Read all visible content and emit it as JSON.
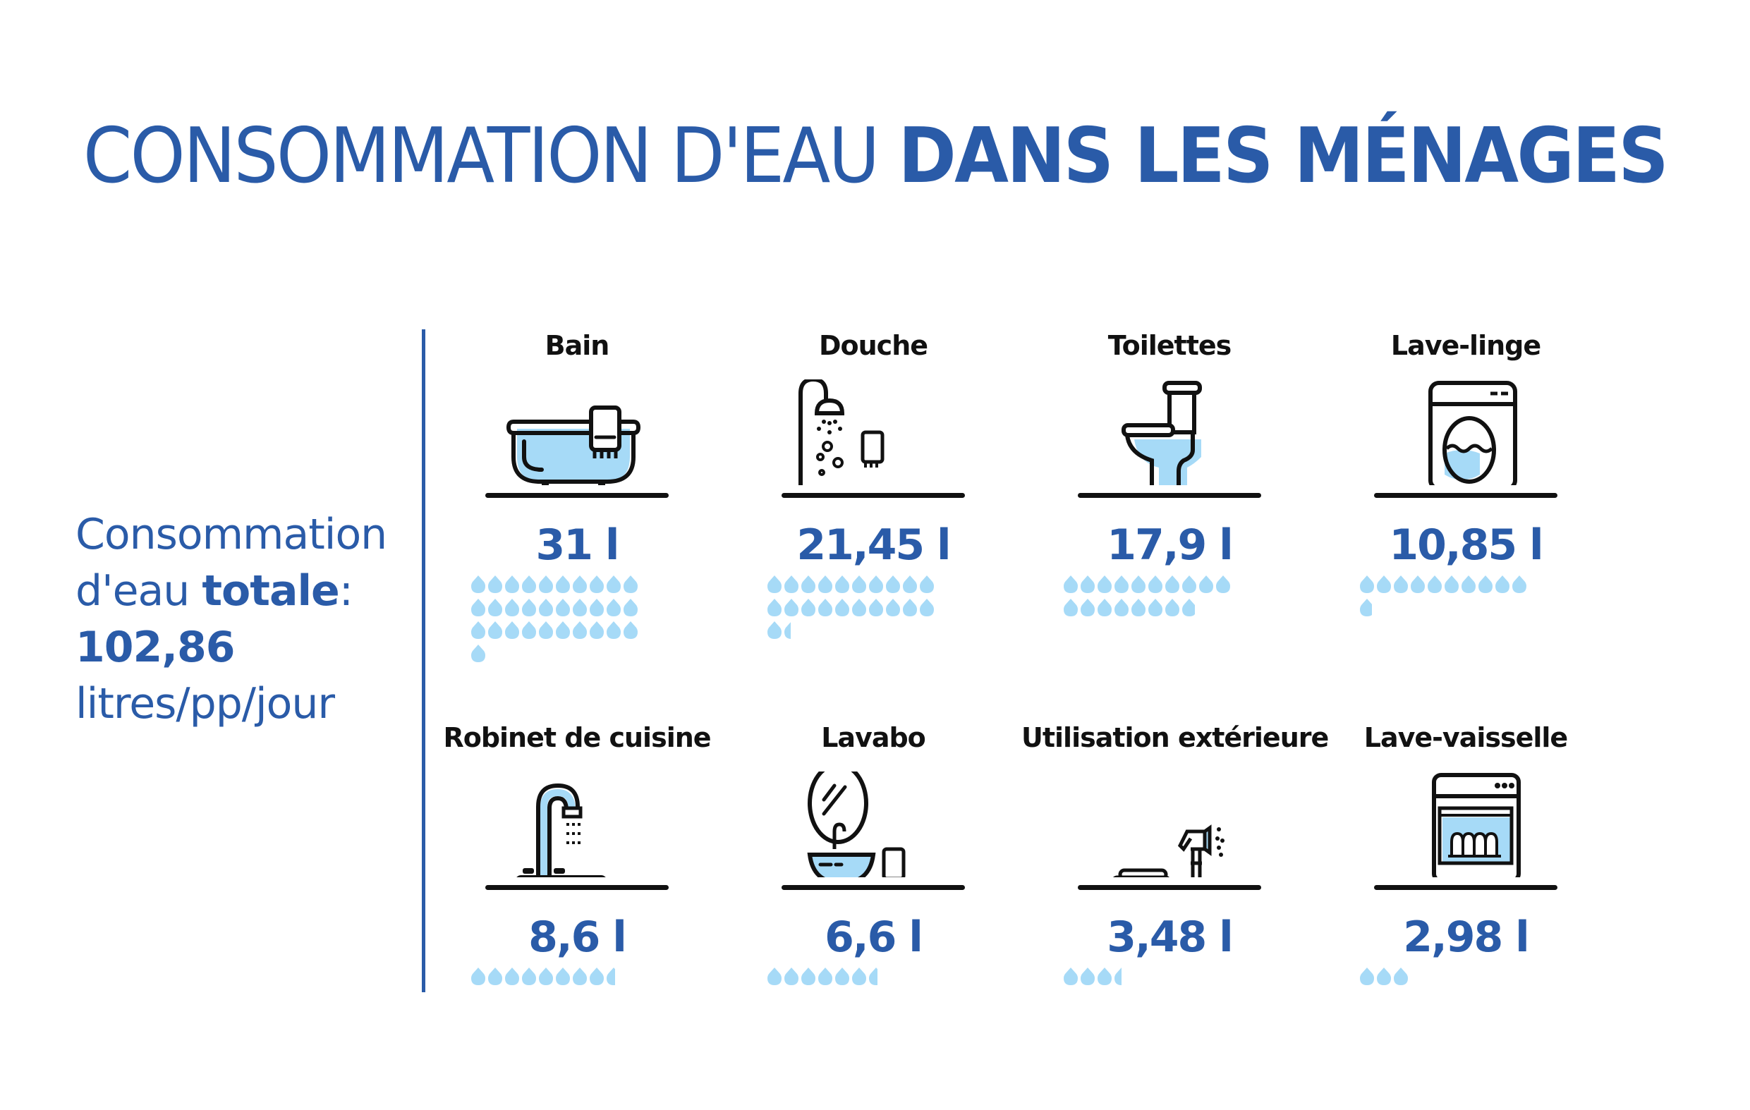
{
  "title": {
    "light": "CONSOMMATION D'EAU",
    "bold": "DANS LES MÉNAGES"
  },
  "total": {
    "line1": "Consommation",
    "line2_prefix": "d'eau ",
    "line2_bold": "totale",
    "line2_suffix": ":",
    "value": "102,86",
    "unit": "litres/pp/jour"
  },
  "colors": {
    "accent": "#2a5ba8",
    "drop": "#a6daf7",
    "icon_stroke": "#111111"
  },
  "items": [
    {
      "label": "Bain",
      "value": "31 l",
      "icon": "bathtub-icon",
      "drops": 31
    },
    {
      "label": "Douche",
      "value": "21,45 l",
      "icon": "shower-icon",
      "drops": 21.45
    },
    {
      "label": "Toilettes",
      "value": "17,9 l",
      "icon": "toilet-icon",
      "drops": 17.9
    },
    {
      "label": "Lave-linge",
      "value": "10,85 l",
      "icon": "washing-machine-icon",
      "drops": 10.85
    },
    {
      "label": "Robinet de cuisine",
      "value": "8,6 l",
      "icon": "kitchen-faucet-icon",
      "drops": 8.6
    },
    {
      "label": "Lavabo",
      "value": "6,6 l",
      "icon": "washbasin-icon",
      "drops": 6.6
    },
    {
      "label": "Utilisation extérieure",
      "value": "3,48 l",
      "icon": "garden-hose-icon",
      "drops": 3.48
    },
    {
      "label": "Lave-vaisselle",
      "value": "2,98 l",
      "icon": "dishwasher-icon",
      "drops": 2.98
    }
  ],
  "chart_data": {
    "type": "bar",
    "title": "CONSOMMATION D'EAU DANS LES MÉNAGES",
    "subtitle": "Consommation d'eau totale: 102,86 litres/pp/jour",
    "categories": [
      "Bain",
      "Douche",
      "Toilettes",
      "Lave-linge",
      "Robinet de cuisine",
      "Lavabo",
      "Utilisation extérieure",
      "Lave-vaisselle"
    ],
    "values": [
      31,
      21.45,
      17.9,
      10.85,
      8.6,
      6.6,
      3.48,
      2.98
    ],
    "unit": "litres/pp/jour",
    "total": 102.86,
    "encoding": "pictogram: one water drop = 1 litre",
    "xlabel": "",
    "ylabel": ""
  }
}
